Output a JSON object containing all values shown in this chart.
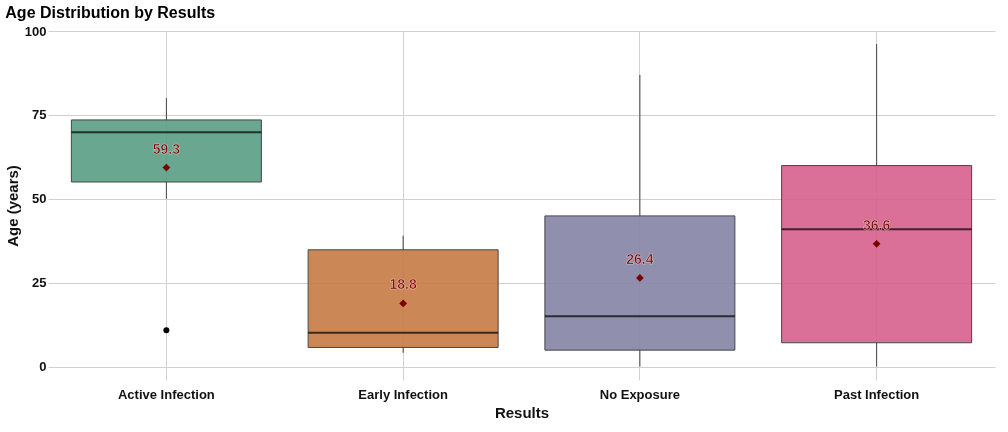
{
  "chart_data": {
    "type": "box",
    "title": "Age Distribution by Results",
    "xlabel": "Results",
    "ylabel": "Age (years)",
    "categories": [
      "Active Infection",
      "Early Infection",
      "No Exposure",
      "Past Infection"
    ],
    "colors": [
      "#5a9e86",
      "#c77b45",
      "#8585a6",
      "#d6608c"
    ],
    "boxes": [
      {
        "low": 50.0,
        "q1": 55.0,
        "median": 69.8,
        "q3": 73.5,
        "high": 80.0,
        "mean": 59.3,
        "outliers": [
          10.8
        ]
      },
      {
        "low": 4.1,
        "q1": 5.7,
        "median": 10.1,
        "q3": 34.8,
        "high": 39.0,
        "mean": 18.8
      },
      {
        "low": 0,
        "q1": 4.9,
        "median": 15.0,
        "q3": 44.9,
        "high": 86.9,
        "mean": 26.4
      },
      {
        "low": 0,
        "q1": 7.1,
        "median": 40.9,
        "q3": 59.9,
        "high": 96.1,
        "mean": 36.6
      }
    ],
    "annotations": [
      "59.3",
      "18.8",
      "26.4",
      "36.6"
    ],
    "ylim": [
      -4,
      100
    ],
    "yticks": [
      0,
      25,
      50,
      75,
      100
    ],
    "grid": true,
    "marker": "diamond"
  }
}
